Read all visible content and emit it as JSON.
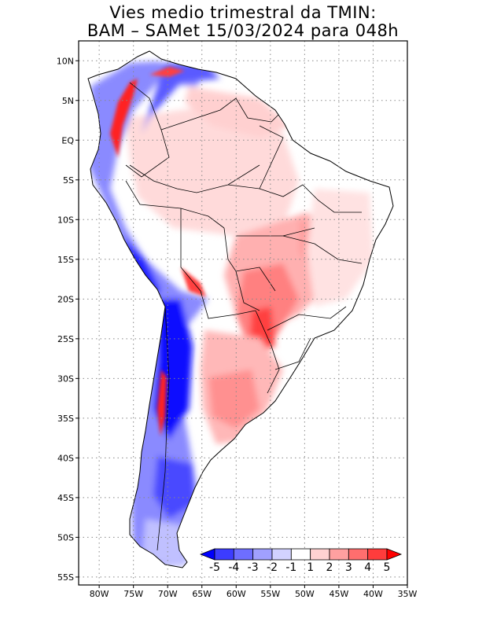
{
  "title": {
    "line1": "Vies medio trimestral da TMIN:",
    "line2": "BAM – SAMet 15/03/2024  para 048h"
  },
  "map": {
    "lat_labels": [
      "10N",
      "5N",
      "EQ",
      "5S",
      "10S",
      "15S",
      "20S",
      "25S",
      "30S",
      "35S",
      "40S",
      "45S",
      "50S",
      "55S"
    ],
    "lon_labels": [
      "80W",
      "75W",
      "70W",
      "65W",
      "60W",
      "55W",
      "50W",
      "45W",
      "40W",
      "35W"
    ],
    "lon_extent_deg": [
      -83,
      -35
    ],
    "lat_extent_deg": [
      -56,
      12.5
    ],
    "gridlines": true,
    "variable": "TMIN bias (seasonal mean)"
  },
  "colorbar": {
    "labels": [
      "-5",
      "-4",
      "-3",
      "-2",
      "-1",
      "1",
      "2",
      "3",
      "4",
      "5"
    ],
    "bins": [
      {
        "range": "< -5",
        "color": "#0000ff"
      },
      {
        "range": "-5 to -4",
        "color": "#3c3cff"
      },
      {
        "range": "-4 to -3",
        "color": "#6e6eff"
      },
      {
        "range": "-3 to -2",
        "color": "#a0a0ff"
      },
      {
        "range": "-2 to -1",
        "color": "#d2d2ff"
      },
      {
        "range": "-1 to 1",
        "color": "#ffffff"
      },
      {
        "range": "1 to 2",
        "color": "#ffd2d2"
      },
      {
        "range": "2 to 3",
        "color": "#ffa0a0"
      },
      {
        "range": "3 to 4",
        "color": "#ff6e6e"
      },
      {
        "range": "4 to 5",
        "color": "#ff3c3c"
      },
      {
        "range": "> 5",
        "color": "#ff0000"
      }
    ]
  },
  "colors": {
    "ocean": "#ffffff",
    "land_neutral": "#ffffff",
    "strong_cold": "#0000ff",
    "cold": "#7070ff",
    "light_cold": "#d2d2ff",
    "light_warm": "#ffd8d8",
    "warm": "#ff9a9a",
    "strong_warm": "#ff3030"
  }
}
